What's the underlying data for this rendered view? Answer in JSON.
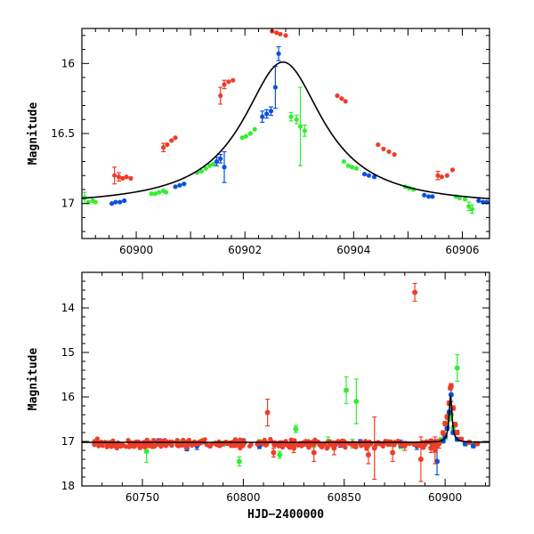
{
  "colors": {
    "green": "#33ee33",
    "blue": "#0b4fe0",
    "red": "#f03c28",
    "model": "#000000"
  },
  "chart_data": [
    {
      "type": "scatter",
      "title": "",
      "xlabel": "",
      "ylabel": "Magnitude",
      "xlim": [
        60899.0,
        60906.5
      ],
      "ylim": [
        17.25,
        15.75
      ],
      "y_inverted": true,
      "xticks": [
        60900,
        60902,
        60904,
        60906
      ],
      "yticks": [
        16,
        16.5,
        17
      ],
      "grid": false,
      "model_curve": {
        "type": "line",
        "color": "#000000",
        "t0": 60902.7,
        "peak_mag": 15.99,
        "base_mag": 17.02,
        "tE": 0.9
      },
      "series": [
        {
          "color": "green",
          "points": [
            [
              60898.95,
              16.91,
              0.05
            ],
            [
              60899.05,
              16.96,
              0.04
            ],
            [
              60899.12,
              16.99,
              0.02
            ],
            [
              60899.2,
              16.98,
              0.02
            ],
            [
              60899.25,
              16.99,
              0.02
            ],
            [
              60900.28,
              16.93,
              0.02
            ],
            [
              60900.35,
              16.93,
              0.02
            ],
            [
              60900.42,
              16.92,
              0.02
            ],
            [
              60900.5,
              16.91,
              0.02
            ],
            [
              60900.55,
              16.92,
              0.02
            ],
            [
              60901.12,
              16.78,
              0.02
            ],
            [
              60901.2,
              16.77,
              0.02
            ],
            [
              60901.28,
              16.75,
              0.02
            ],
            [
              60901.35,
              16.73,
              0.02
            ],
            [
              60901.42,
              16.72,
              0.02
            ],
            [
              60901.95,
              16.53,
              0.02
            ],
            [
              60902.02,
              16.52,
              0.02
            ],
            [
              60902.1,
              16.5,
              0.02
            ],
            [
              60902.18,
              16.47,
              0.02
            ],
            [
              60902.85,
              16.38,
              0.03
            ],
            [
              60902.95,
              16.4,
              0.03
            ],
            [
              60903.02,
              16.45,
              0.28
            ],
            [
              60903.1,
              16.48,
              0.04
            ],
            [
              60903.82,
              16.7,
              0.02
            ],
            [
              60903.9,
              16.73,
              0.02
            ],
            [
              60903.97,
              16.74,
              0.02
            ],
            [
              60904.05,
              16.75,
              0.02
            ],
            [
              60904.95,
              16.88,
              0.02
            ],
            [
              60905.02,
              16.89,
              0.02
            ],
            [
              60905.1,
              16.9,
              0.02
            ],
            [
              60905.88,
              16.95,
              0.02
            ],
            [
              60905.95,
              16.96,
              0.02
            ],
            [
              60906.05,
              16.97,
              0.02
            ],
            [
              60906.12,
              17.02,
              0.03
            ],
            [
              60906.18,
              17.04,
              0.03
            ]
          ]
        },
        {
          "color": "blue",
          "points": [
            [
              60899.55,
              17.0,
              0.02
            ],
            [
              60899.62,
              16.99,
              0.02
            ],
            [
              60899.7,
              16.99,
              0.02
            ],
            [
              60899.78,
              16.98,
              0.02
            ],
            [
              60900.72,
              16.88,
              0.02
            ],
            [
              60900.8,
              16.87,
              0.02
            ],
            [
              60900.88,
              16.86,
              0.02
            ],
            [
              60901.48,
              16.7,
              0.03
            ],
            [
              60901.55,
              16.68,
              0.03
            ],
            [
              60901.62,
              16.74,
              0.11
            ],
            [
              60902.32,
              16.38,
              0.04
            ],
            [
              60902.4,
              16.36,
              0.03
            ],
            [
              60902.48,
              16.34,
              0.03
            ],
            [
              60902.56,
              16.17,
              0.15
            ],
            [
              60902.62,
              15.93,
              0.05
            ],
            [
              60904.2,
              16.79,
              0.02
            ],
            [
              60904.28,
              16.8,
              0.02
            ],
            [
              60904.38,
              16.81,
              0.02
            ],
            [
              60905.3,
              16.94,
              0.02
            ],
            [
              60905.38,
              16.95,
              0.02
            ],
            [
              60905.45,
              16.95,
              0.02
            ],
            [
              60906.3,
              16.98,
              0.02
            ],
            [
              60906.38,
              16.99,
              0.02
            ],
            [
              60906.45,
              16.99,
              0.02
            ]
          ]
        },
        {
          "color": "red",
          "points": [
            [
              60899.6,
              16.8,
              0.06
            ],
            [
              60899.68,
              16.81,
              0.03
            ],
            [
              60899.75,
              16.82,
              0.02
            ],
            [
              60899.82,
              16.81,
              0.02
            ],
            [
              60899.9,
              16.82,
              0.02
            ],
            [
              60900.5,
              16.6,
              0.03
            ],
            [
              60900.57,
              16.58,
              0.02
            ],
            [
              60900.65,
              16.55,
              0.02
            ],
            [
              60900.72,
              16.53,
              0.02
            ],
            [
              60901.55,
              16.23,
              0.06
            ],
            [
              60901.62,
              16.15,
              0.03
            ],
            [
              60901.7,
              16.13,
              0.02
            ],
            [
              60901.78,
              16.12,
              0.02
            ],
            [
              60902.5,
              15.77,
              0.02
            ],
            [
              60902.58,
              15.78,
              0.02
            ],
            [
              60902.65,
              15.79,
              0.02
            ],
            [
              60902.75,
              15.8,
              0.02
            ],
            [
              60903.7,
              16.23,
              0.02
            ],
            [
              60903.78,
              16.25,
              0.02
            ],
            [
              60903.85,
              16.27,
              0.02
            ],
            [
              60904.45,
              16.58,
              0.02
            ],
            [
              60904.55,
              16.61,
              0.02
            ],
            [
              60904.65,
              16.63,
              0.02
            ],
            [
              60904.75,
              16.65,
              0.02
            ],
            [
              60905.55,
              16.8,
              0.03
            ],
            [
              60905.62,
              16.81,
              0.02
            ],
            [
              60905.72,
              16.8,
              0.02
            ],
            [
              60905.82,
              16.76,
              0.02
            ]
          ]
        }
      ]
    },
    {
      "type": "scatter",
      "title": "",
      "xlabel": "HJD−2400000",
      "ylabel": "Magnitude",
      "xlim": [
        60720,
        60922
      ],
      "ylim": [
        18.0,
        13.2
      ],
      "y_inverted": true,
      "xticks": [
        60750,
        60800,
        60850,
        60900
      ],
      "yticks": [
        14,
        15,
        16,
        17,
        18
      ],
      "grid": false,
      "model_curve": {
        "type": "line",
        "color": "#000000",
        "t0": 60902.7,
        "peak_mag": 15.99,
        "base_mag": 17.02,
        "tE": 0.9
      },
      "series": [
        {
          "color": "green",
          "points": [
            [
              60733,
              17.03,
              0.05
            ],
            [
              60745,
              17.05,
              0.06
            ],
            [
              60752,
              17.22,
              0.25
            ],
            [
              60768,
              17.02,
              0.06
            ],
            [
              60772,
              17.1,
              0.08
            ],
            [
              60790,
              17.05,
              0.06
            ],
            [
              60798,
              17.45,
              0.1
            ],
            [
              60808,
              17.02,
              0.06
            ],
            [
              60818,
              17.3,
              0.08
            ],
            [
              60826,
              16.72,
              0.08
            ],
            [
              60835,
              17.05,
              0.08
            ],
            [
              60842,
              17.0,
              0.1
            ],
            [
              60851,
              15.85,
              0.3
            ],
            [
              60854,
              17.05,
              0.1
            ],
            [
              60856,
              16.1,
              0.5
            ],
            [
              60862,
              17.05,
              0.06
            ],
            [
              60873,
              17.05,
              0.06
            ],
            [
              60878,
              17.1,
              0.06
            ],
            [
              60893,
              17.02,
              0.05
            ],
            [
              60898,
              16.96,
              0.04
            ],
            [
              60900,
              16.92,
              0.04
            ],
            [
              60902,
              16.5,
              0.04
            ],
            [
              60903,
              16.4,
              0.05
            ],
            [
              60904,
              16.7,
              0.05
            ],
            [
              60906,
              15.35,
              0.3
            ],
            [
              60910,
              17.05,
              0.05
            ],
            [
              60915,
              17.05,
              0.04
            ]
          ]
        },
        {
          "color": "blue",
          "points": [
            [
              60735,
              17.03,
              0.04
            ],
            [
              60758,
              17.0,
              0.06
            ],
            [
              60772,
              17.15,
              0.06
            ],
            [
              60777,
              17.1,
              0.08
            ],
            [
              60780,
              17.0,
              0.05
            ],
            [
              60800,
              17.0,
              0.06
            ],
            [
              60808,
              17.1,
              0.06
            ],
            [
              60818,
              17.05,
              0.05
            ],
            [
              60832,
              17.05,
              0.06
            ],
            [
              60848,
              17.05,
              0.08
            ],
            [
              60858,
              17.02,
              0.06
            ],
            [
              60878,
              17.05,
              0.08
            ],
            [
              60886,
              17.1,
              0.08
            ],
            [
              60893,
              17.0,
              0.05
            ],
            [
              60896,
              17.45,
              0.3
            ],
            [
              60899,
              16.99,
              0.04
            ],
            [
              60900,
              16.88,
              0.04
            ],
            [
              60901,
              16.7,
              0.05
            ],
            [
              60902,
              16.35,
              0.05
            ],
            [
              60903,
              15.95,
              0.15
            ],
            [
              60904,
              16.8,
              0.04
            ],
            [
              60906,
              16.95,
              0.04
            ],
            [
              60910,
              17.05,
              0.04
            ],
            [
              60914,
              17.1,
              0.04
            ]
          ]
        },
        {
          "color": "red",
          "points": [
            [
              60812,
              16.35,
              0.3
            ],
            [
              60815,
              17.25,
              0.1
            ],
            [
              60825,
              17.15,
              0.1
            ],
            [
              60835,
              17.25,
              0.2
            ],
            [
              60845,
              17.15,
              0.15
            ],
            [
              60862,
              17.3,
              0.2
            ],
            [
              60865,
              17.15,
              0.7
            ],
            [
              60874,
              17.25,
              0.2
            ],
            [
              60880,
              17.1,
              0.1
            ],
            [
              60885,
              13.65,
              0.2
            ],
            [
              60888,
              17.4,
              0.5
            ],
            [
              60893,
              17.15,
              0.1
            ],
            [
              60895,
              17.2,
              0.3
            ],
            [
              60897,
              17.05,
              0.1
            ],
            [
              60899,
              16.81,
              0.05
            ],
            [
              60900,
              16.6,
              0.05
            ],
            [
              60901,
              16.45,
              0.05
            ],
            [
              60902,
              16.14,
              0.05
            ],
            [
              60902.6,
              15.8,
              0.04
            ],
            [
              60903,
              15.75,
              0.05
            ],
            [
              60904,
              16.25,
              0.05
            ],
            [
              60905,
              16.62,
              0.05
            ],
            [
              60906,
              16.8,
              0.05
            ],
            [
              60908,
              16.95,
              0.04
            ],
            [
              60912,
              17.02,
              0.04
            ],
            [
              60916,
              17.05,
              0.04
            ]
          ]
        },
        {
          "color": "red",
          "dense": true,
          "x_range": [
            60726,
            60896
          ],
          "base_mag": 17.05,
          "scatter": 0.05,
          "count": 340
        }
      ]
    }
  ]
}
